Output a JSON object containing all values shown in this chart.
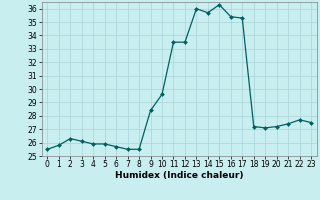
{
  "x": [
    0,
    1,
    2,
    3,
    4,
    5,
    6,
    7,
    8,
    9,
    10,
    11,
    12,
    13,
    14,
    15,
    16,
    17,
    18,
    19,
    20,
    21,
    22,
    23
  ],
  "y": [
    25.5,
    25.8,
    26.3,
    26.1,
    25.9,
    25.9,
    25.7,
    25.5,
    25.5,
    28.4,
    29.6,
    33.5,
    33.5,
    36.0,
    35.7,
    36.3,
    35.4,
    35.3,
    27.2,
    27.1,
    27.2,
    27.4,
    27.7,
    27.5
  ],
  "line_color": "#006060",
  "marker": "D",
  "marker_size": 2.0,
  "background_color": "#c8eef0",
  "grid_color": "#a8d4d8",
  "xlabel": "Humidex (Indice chaleur)",
  "ylim": [
    25,
    36.5
  ],
  "xlim": [
    -0.5,
    23.5
  ],
  "yticks": [
    25,
    26,
    27,
    28,
    29,
    30,
    31,
    32,
    33,
    34,
    35,
    36
  ],
  "xticks": [
    0,
    1,
    2,
    3,
    4,
    5,
    6,
    7,
    8,
    9,
    10,
    11,
    12,
    13,
    14,
    15,
    16,
    17,
    18,
    19,
    20,
    21,
    22,
    23
  ],
  "label_fontsize": 6.5,
  "tick_fontsize": 5.5
}
